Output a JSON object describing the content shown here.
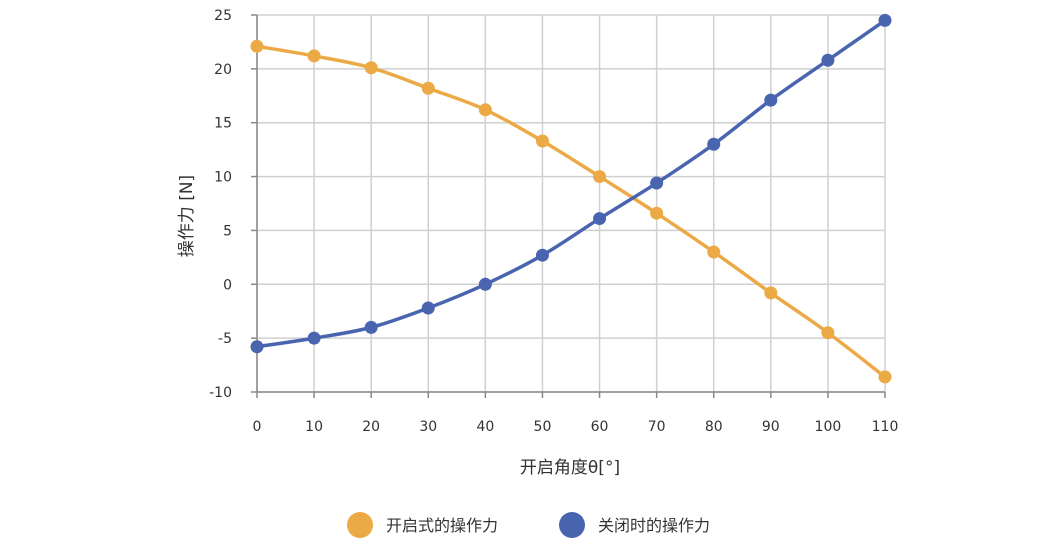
{
  "chart_data": {
    "type": "line",
    "xlabel": "开启角度θ[°]",
    "ylabel": "操作力 [N]",
    "x": [
      0,
      10,
      20,
      30,
      40,
      50,
      60,
      70,
      80,
      90,
      100,
      110
    ],
    "x_ticks": [
      "0",
      "10",
      "20",
      "30",
      "40",
      "50",
      "60",
      "70",
      "80",
      "90",
      "100",
      "110"
    ],
    "y_ticks": [
      "25",
      "20",
      "15",
      "10",
      "5",
      "0",
      "-5",
      "-10"
    ],
    "xlim": [
      0,
      110
    ],
    "ylim": [
      -10,
      25
    ],
    "grid": true,
    "legend_position": "bottom-center",
    "series": [
      {
        "name": "开启式的操作力",
        "color": "#EBAA46",
        "values": [
          22.1,
          21.2,
          20.1,
          18.2,
          16.2,
          13.3,
          10.0,
          6.6,
          3.0,
          -0.8,
          -4.5,
          -8.6
        ]
      },
      {
        "name": "关闭时的操作力",
        "color": "#4A65AF",
        "values": [
          -5.8,
          -5.0,
          -4.0,
          -2.2,
          0.0,
          2.7,
          6.1,
          9.4,
          13.0,
          17.1,
          20.8,
          24.5
        ]
      }
    ]
  }
}
